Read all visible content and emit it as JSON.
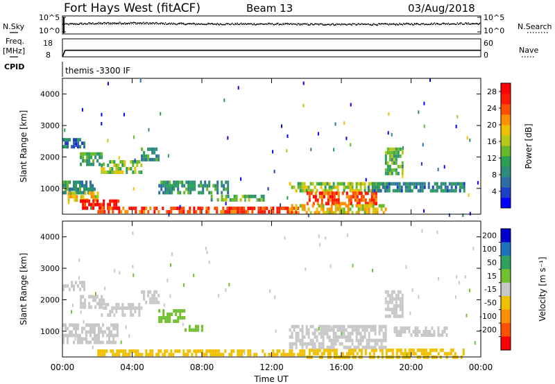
{
  "header": {
    "station": "Fort Hays West (fitACF)",
    "beam": "Beam 13",
    "date": "03/Aug/2018"
  },
  "sidebar": {
    "nsky": "N.Sky",
    "freq_line1": "Freq.",
    "freq_line2": "[MHz]",
    "cpid": "CPID",
    "nsearch": "N.Search",
    "nave": "Nave"
  },
  "cpid_text": "themis -3300 IF",
  "chart_data": [
    {
      "type": "line",
      "name": "noise-panel",
      "y_left_ticks": [
        "10^5",
        "10^0"
      ],
      "y_right_ticks": [
        "10^5",
        "10^0"
      ],
      "x_range_hours": [
        0,
        24
      ],
      "series": [
        {
          "name": "N.Sky",
          "style": "dots",
          "x": [
            0,
            2,
            4,
            6,
            8,
            10,
            12,
            14,
            16,
            18,
            20,
            22,
            24
          ],
          "y_log": [
            2.8,
            3.1,
            3.2,
            3.0,
            2.9,
            2.9,
            2.9,
            2.8,
            2.8,
            2.8,
            2.9,
            3.0,
            3.0
          ]
        },
        {
          "name": "N.Search",
          "style": "dotted",
          "x": [
            0,
            24
          ],
          "y_log": [
            2.7,
            2.7
          ]
        }
      ]
    },
    {
      "type": "line",
      "name": "freq-nave-panel",
      "y_left_ticks": [
        "18",
        "8"
      ],
      "y_right_ticks": [
        "60",
        "0"
      ],
      "x_range_hours": [
        0,
        24
      ],
      "series": [
        {
          "name": "Freq.",
          "x": [
            0,
            0.15,
            24
          ],
          "y": [
            8,
            11.6,
            11.6
          ]
        },
        {
          "name": "Nave",
          "style": "dotted",
          "x": [
            0,
            24
          ],
          "y": [
            21,
            21
          ]
        }
      ]
    },
    {
      "type": "heatmap",
      "name": "power",
      "ylabel": "Slant Range [km]",
      "y_ticks": [
        1000,
        2000,
        3000,
        4000
      ],
      "ylim": [
        180,
        4500
      ],
      "x_ticks": [
        "00:00",
        "04:00",
        "08:00",
        "12:00",
        "16:00",
        "20:00",
        "00:00"
      ],
      "xlim_hours": [
        0,
        24
      ],
      "colorbar": {
        "label": "Power [dB]",
        "ticks": [
          4,
          8,
          12,
          16,
          20,
          24,
          28
        ],
        "range": [
          0,
          30
        ],
        "colors": [
          "#0000ff",
          "#1e40c8",
          "#2d6ea5",
          "#2f8c7a",
          "#2aa055",
          "#68b82a",
          "#b8c81a",
          "#f0c000",
          "#ff9000",
          "#ff5000",
          "#ff1a00",
          "#ff0000"
        ]
      },
      "regions": [
        {
          "t0": 0.0,
          "t1": 1.8,
          "r0": 900,
          "r1": 1250,
          "v": 10
        },
        {
          "t0": 0.3,
          "t1": 2.0,
          "r0": 600,
          "r1": 900,
          "v": 18
        },
        {
          "t0": 1.0,
          "t1": 3.2,
          "r0": 380,
          "r1": 650,
          "v": 27
        },
        {
          "t0": 2.0,
          "t1": 13.5,
          "r0": 200,
          "r1": 420,
          "v": 25
        },
        {
          "t0": 0.0,
          "t1": 1.2,
          "r0": 2300,
          "r1": 2600,
          "v": 7
        },
        {
          "t0": 1.0,
          "t1": 2.4,
          "r0": 1800,
          "r1": 2150,
          "v": 11
        },
        {
          "t0": 2.2,
          "t1": 4.5,
          "r0": 1500,
          "r1": 1900,
          "v": 15
        },
        {
          "t0": 4.5,
          "t1": 5.5,
          "r0": 1900,
          "r1": 2300,
          "v": 9
        },
        {
          "t0": 5.5,
          "t1": 9.5,
          "r0": 900,
          "r1": 1250,
          "v": 10
        },
        {
          "t0": 8.5,
          "t1": 11.5,
          "r0": 600,
          "r1": 800,
          "v": 12
        },
        {
          "t0": 13.0,
          "t1": 18.5,
          "r0": 900,
          "r1": 1200,
          "v": 15
        },
        {
          "t0": 14.0,
          "t1": 18.0,
          "r0": 500,
          "r1": 900,
          "v": 25
        },
        {
          "t0": 13.0,
          "t1": 18.5,
          "r0": 200,
          "r1": 500,
          "v": 18
        },
        {
          "t0": 17.5,
          "t1": 23.0,
          "r0": 900,
          "r1": 1200,
          "v": 8
        },
        {
          "t0": 18.5,
          "t1": 19.5,
          "r0": 1500,
          "r1": 2300,
          "v": 13
        }
      ]
    },
    {
      "type": "heatmap",
      "name": "velocity",
      "ylabel": "Slant Range [km]",
      "xlabel": "Time UT",
      "y_ticks": [
        1000,
        2000,
        3000,
        4000
      ],
      "ylim": [
        180,
        4500
      ],
      "x_ticks": [
        "00:00",
        "04:00",
        "08:00",
        "12:00",
        "16:00",
        "20:00",
        "00:00"
      ],
      "xlim_hours": [
        0,
        24
      ],
      "colorbar": {
        "label": "Velocity [m s⁻¹]",
        "ticks": [
          "200",
          "100",
          "50",
          "15",
          "-15",
          "-50",
          "-100",
          "-200"
        ],
        "colors": [
          "#0000cc",
          "#2070c0",
          "#30a060",
          "#70c030",
          "#c8c8c8",
          "#f0c000",
          "#ff9000",
          "#ff5000",
          "#ff0000"
        ]
      },
      "regions": [
        {
          "t0": 0.0,
          "t1": 1.2,
          "r0": 2300,
          "r1": 2600,
          "v": 0
        },
        {
          "t0": 1.0,
          "t1": 2.4,
          "r0": 1800,
          "r1": 2150,
          "v": 0
        },
        {
          "t0": 2.2,
          "t1": 4.5,
          "r0": 1500,
          "r1": 1900,
          "v": 0
        },
        {
          "t0": 4.5,
          "t1": 5.5,
          "r0": 1900,
          "r1": 2300,
          "v": 0
        },
        {
          "t0": 0.0,
          "t1": 3.2,
          "r0": 600,
          "r1": 1250,
          "v": 0
        },
        {
          "t0": 5.5,
          "t1": 7.0,
          "r0": 1300,
          "r1": 1700,
          "v": 40
        },
        {
          "t0": 7.0,
          "t1": 8.0,
          "r0": 1000,
          "r1": 1200,
          "v": 40
        },
        {
          "t0": 2.0,
          "t1": 14.0,
          "r0": 200,
          "r1": 420,
          "v": -40
        },
        {
          "t0": 14.0,
          "t1": 23.0,
          "r0": 200,
          "r1": 450,
          "v": -40
        },
        {
          "t0": 13.0,
          "t1": 18.5,
          "r0": 450,
          "r1": 1200,
          "v": 0
        },
        {
          "t0": 18.5,
          "t1": 19.5,
          "r0": 1500,
          "r1": 2300,
          "v": 0
        },
        {
          "t0": 19.0,
          "t1": 22.0,
          "r0": 900,
          "r1": 1150,
          "v": 0
        }
      ]
    }
  ],
  "axes": {
    "power_ylabel": "Slant Range [km]",
    "velocity_ylabel": "Slant Range [km]",
    "xlabel": "Time UT",
    "power_cbar_label": "Power [dB]",
    "velocity_cbar_label": "Velocity [m s⁻¹]"
  }
}
